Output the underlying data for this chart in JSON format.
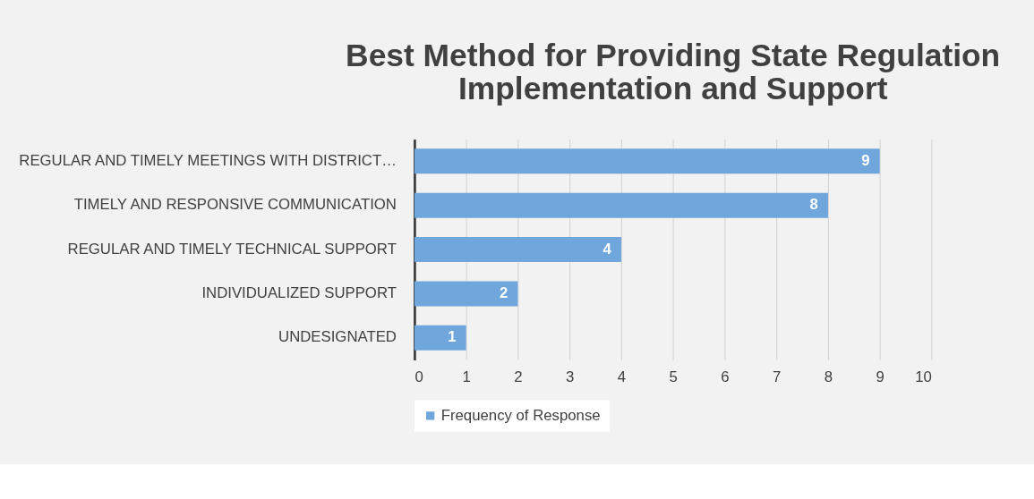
{
  "chart_data": {
    "type": "bar",
    "orientation": "horizontal",
    "title": "Best Method for Providing State Regulation Implementation and Support",
    "categories": [
      "REGULAR AND TIMELY MEETINGS WITH DISTRICT…",
      "TIMELY AND RESPONSIVE COMMUNICATION",
      "REGULAR AND TIMELY TECHNICAL SUPPORT",
      "INDIVIDUALIZED SUPPORT",
      "UNDESIGNATED"
    ],
    "series": [
      {
        "name": "Frequency of Response",
        "color": "#6fa6dc",
        "values": [
          9,
          8,
          4,
          2,
          1
        ]
      }
    ],
    "xlim": [
      0,
      10
    ],
    "xticks": [
      0,
      1,
      2,
      3,
      4,
      5,
      6,
      7,
      8,
      9,
      10
    ],
    "grid": "x",
    "legend": "bottom",
    "data_labels": true
  }
}
